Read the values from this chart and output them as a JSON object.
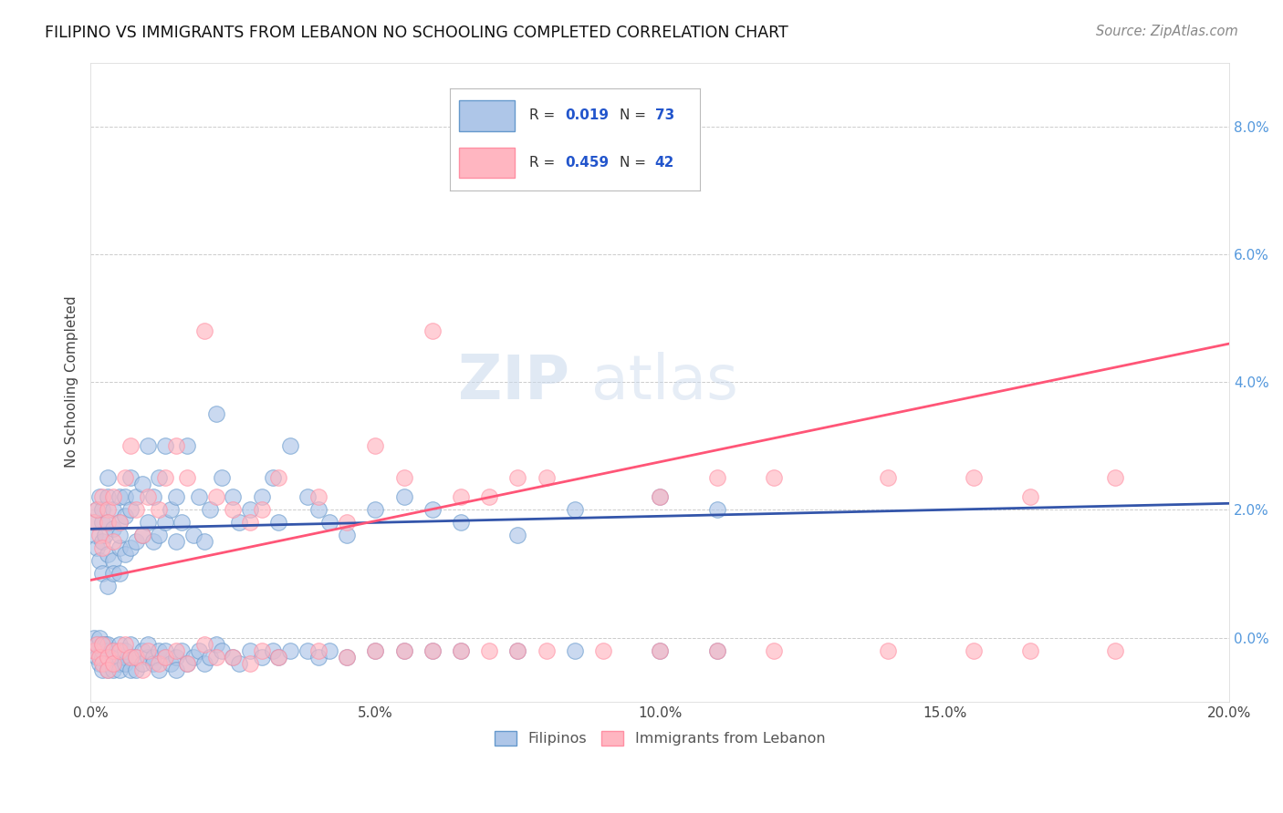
{
  "title": "FILIPINO VS IMMIGRANTS FROM LEBANON NO SCHOOLING COMPLETED CORRELATION CHART",
  "source": "Source: ZipAtlas.com",
  "ylabel": "No Schooling Completed",
  "x_min": 0.0,
  "x_max": 0.2,
  "y_min": -0.01,
  "y_max": 0.09,
  "y_ticks": [
    0.0,
    0.02,
    0.04,
    0.06,
    0.08
  ],
  "x_ticks": [
    0.0,
    0.05,
    0.1,
    0.15,
    0.2
  ],
  "x_tick_labels": [
    "0.0%",
    "5.0%",
    "10.0%",
    "15.0%",
    "20.0%"
  ],
  "y_tick_labels_right": [
    "0.0%",
    "2.0%",
    "4.0%",
    "6.0%",
    "8.0%"
  ],
  "blue_marker_face": "#AEC6E8",
  "blue_marker_edge": "#6699CC",
  "pink_marker_face": "#FFB6C1",
  "pink_marker_edge": "#FF8FA3",
  "trend_blue": "#3355AA",
  "trend_pink": "#FF5577",
  "label1": "Filipinos",
  "label2": "Immigrants from Lebanon",
  "watermark_zip": "ZIP",
  "watermark_atlas": "atlas",
  "legend_box_color": "#EEEEEE",
  "legend_box_edge": "#CCCCCC",
  "blue_scatter_x": [
    0.0005,
    0.0008,
    0.001,
    0.001,
    0.0015,
    0.0015,
    0.002,
    0.002,
    0.002,
    0.002,
    0.0025,
    0.003,
    0.003,
    0.003,
    0.003,
    0.003,
    0.004,
    0.004,
    0.004,
    0.004,
    0.005,
    0.005,
    0.005,
    0.005,
    0.005,
    0.006,
    0.006,
    0.006,
    0.007,
    0.007,
    0.007,
    0.008,
    0.008,
    0.009,
    0.009,
    0.01,
    0.01,
    0.011,
    0.011,
    0.012,
    0.012,
    0.013,
    0.013,
    0.014,
    0.015,
    0.015,
    0.016,
    0.017,
    0.018,
    0.019,
    0.02,
    0.021,
    0.022,
    0.023,
    0.025,
    0.026,
    0.028,
    0.03,
    0.032,
    0.033,
    0.035,
    0.038,
    0.04,
    0.042,
    0.045,
    0.05,
    0.055,
    0.06,
    0.065,
    0.075,
    0.085,
    0.1,
    0.11
  ],
  "blue_scatter_y": [
    0.018,
    0.016,
    0.014,
    0.02,
    0.012,
    0.022,
    0.015,
    0.018,
    0.02,
    0.01,
    0.016,
    0.013,
    0.018,
    0.022,
    0.008,
    0.025,
    0.012,
    0.017,
    0.02,
    0.01,
    0.014,
    0.018,
    0.022,
    0.01,
    0.016,
    0.013,
    0.019,
    0.022,
    0.014,
    0.02,
    0.025,
    0.015,
    0.022,
    0.016,
    0.024,
    0.018,
    0.03,
    0.015,
    0.022,
    0.016,
    0.025,
    0.018,
    0.03,
    0.02,
    0.015,
    0.022,
    0.018,
    0.03,
    0.016,
    0.022,
    0.015,
    0.02,
    0.035,
    0.025,
    0.022,
    0.018,
    0.02,
    0.022,
    0.025,
    0.018,
    0.03,
    0.022,
    0.02,
    0.018,
    0.016,
    0.02,
    0.022,
    0.02,
    0.018,
    0.016,
    0.02,
    0.022,
    0.02
  ],
  "blue_scatter_y_neg": [
    0.0,
    -0.002,
    -0.001,
    -0.003,
    0.0,
    -0.004,
    -0.001,
    -0.003,
    -0.005,
    -0.002,
    -0.001,
    -0.003,
    -0.004,
    -0.002,
    -0.005,
    -0.001,
    -0.002,
    -0.004,
    -0.003,
    -0.005,
    -0.002,
    -0.004,
    -0.003,
    -0.005,
    -0.001,
    -0.003,
    -0.004,
    -0.002,
    -0.003,
    -0.005,
    -0.001,
    -0.003,
    -0.005,
    -0.002,
    -0.004,
    -0.003,
    -0.001,
    -0.003,
    -0.004,
    -0.002,
    -0.005,
    -0.003,
    -0.002,
    -0.004,
    -0.003,
    -0.005,
    -0.002,
    -0.004,
    -0.003,
    -0.002,
    -0.004,
    -0.003,
    -0.001,
    -0.002,
    -0.003,
    -0.004,
    -0.002,
    -0.003,
    -0.002,
    -0.003,
    -0.002,
    -0.002,
    -0.003,
    -0.002,
    -0.003,
    -0.002,
    -0.002,
    -0.002,
    -0.002,
    -0.002,
    -0.002,
    -0.002,
    -0.002
  ],
  "pink_scatter_x": [
    0.0005,
    0.001,
    0.0015,
    0.002,
    0.002,
    0.003,
    0.003,
    0.004,
    0.004,
    0.005,
    0.006,
    0.007,
    0.008,
    0.009,
    0.01,
    0.012,
    0.013,
    0.015,
    0.017,
    0.02,
    0.022,
    0.025,
    0.028,
    0.03,
    0.033,
    0.04,
    0.045,
    0.05,
    0.055,
    0.06,
    0.065,
    0.07,
    0.075,
    0.08,
    0.09,
    0.1,
    0.11,
    0.12,
    0.14,
    0.155,
    0.165,
    0.18
  ],
  "pink_scatter_y": [
    0.018,
    0.02,
    0.016,
    0.022,
    0.014,
    0.02,
    0.018,
    0.015,
    0.022,
    0.018,
    0.025,
    0.03,
    0.02,
    0.016,
    0.022,
    0.02,
    0.025,
    0.03,
    0.025,
    0.048,
    0.022,
    0.02,
    0.018,
    0.02,
    0.025,
    0.022,
    0.018,
    0.03,
    0.025,
    0.048,
    0.022,
    0.022,
    0.025,
    0.025,
    0.075,
    0.022,
    0.025,
    0.025,
    0.025,
    0.025,
    0.022,
    0.025
  ],
  "pink_scatter_y_neg": [
    -0.002,
    -0.001,
    -0.003,
    -0.001,
    -0.004,
    -0.003,
    -0.005,
    -0.002,
    -0.004,
    -0.002,
    -0.001,
    -0.003,
    -0.003,
    -0.005,
    -0.002,
    -0.004,
    -0.003,
    -0.002,
    -0.004,
    -0.001,
    -0.003,
    -0.003,
    -0.004,
    -0.002,
    -0.003,
    -0.002,
    -0.003,
    -0.002,
    -0.002,
    -0.002,
    -0.002,
    -0.002,
    -0.002,
    -0.002,
    -0.002,
    -0.002,
    -0.002,
    -0.002,
    -0.002,
    -0.002,
    -0.002,
    -0.002
  ],
  "blue_trend_x": [
    0.0,
    0.2
  ],
  "blue_trend_y": [
    0.017,
    0.021
  ],
  "pink_trend_x": [
    0.0,
    0.2
  ],
  "pink_trend_y": [
    0.009,
    0.046
  ]
}
